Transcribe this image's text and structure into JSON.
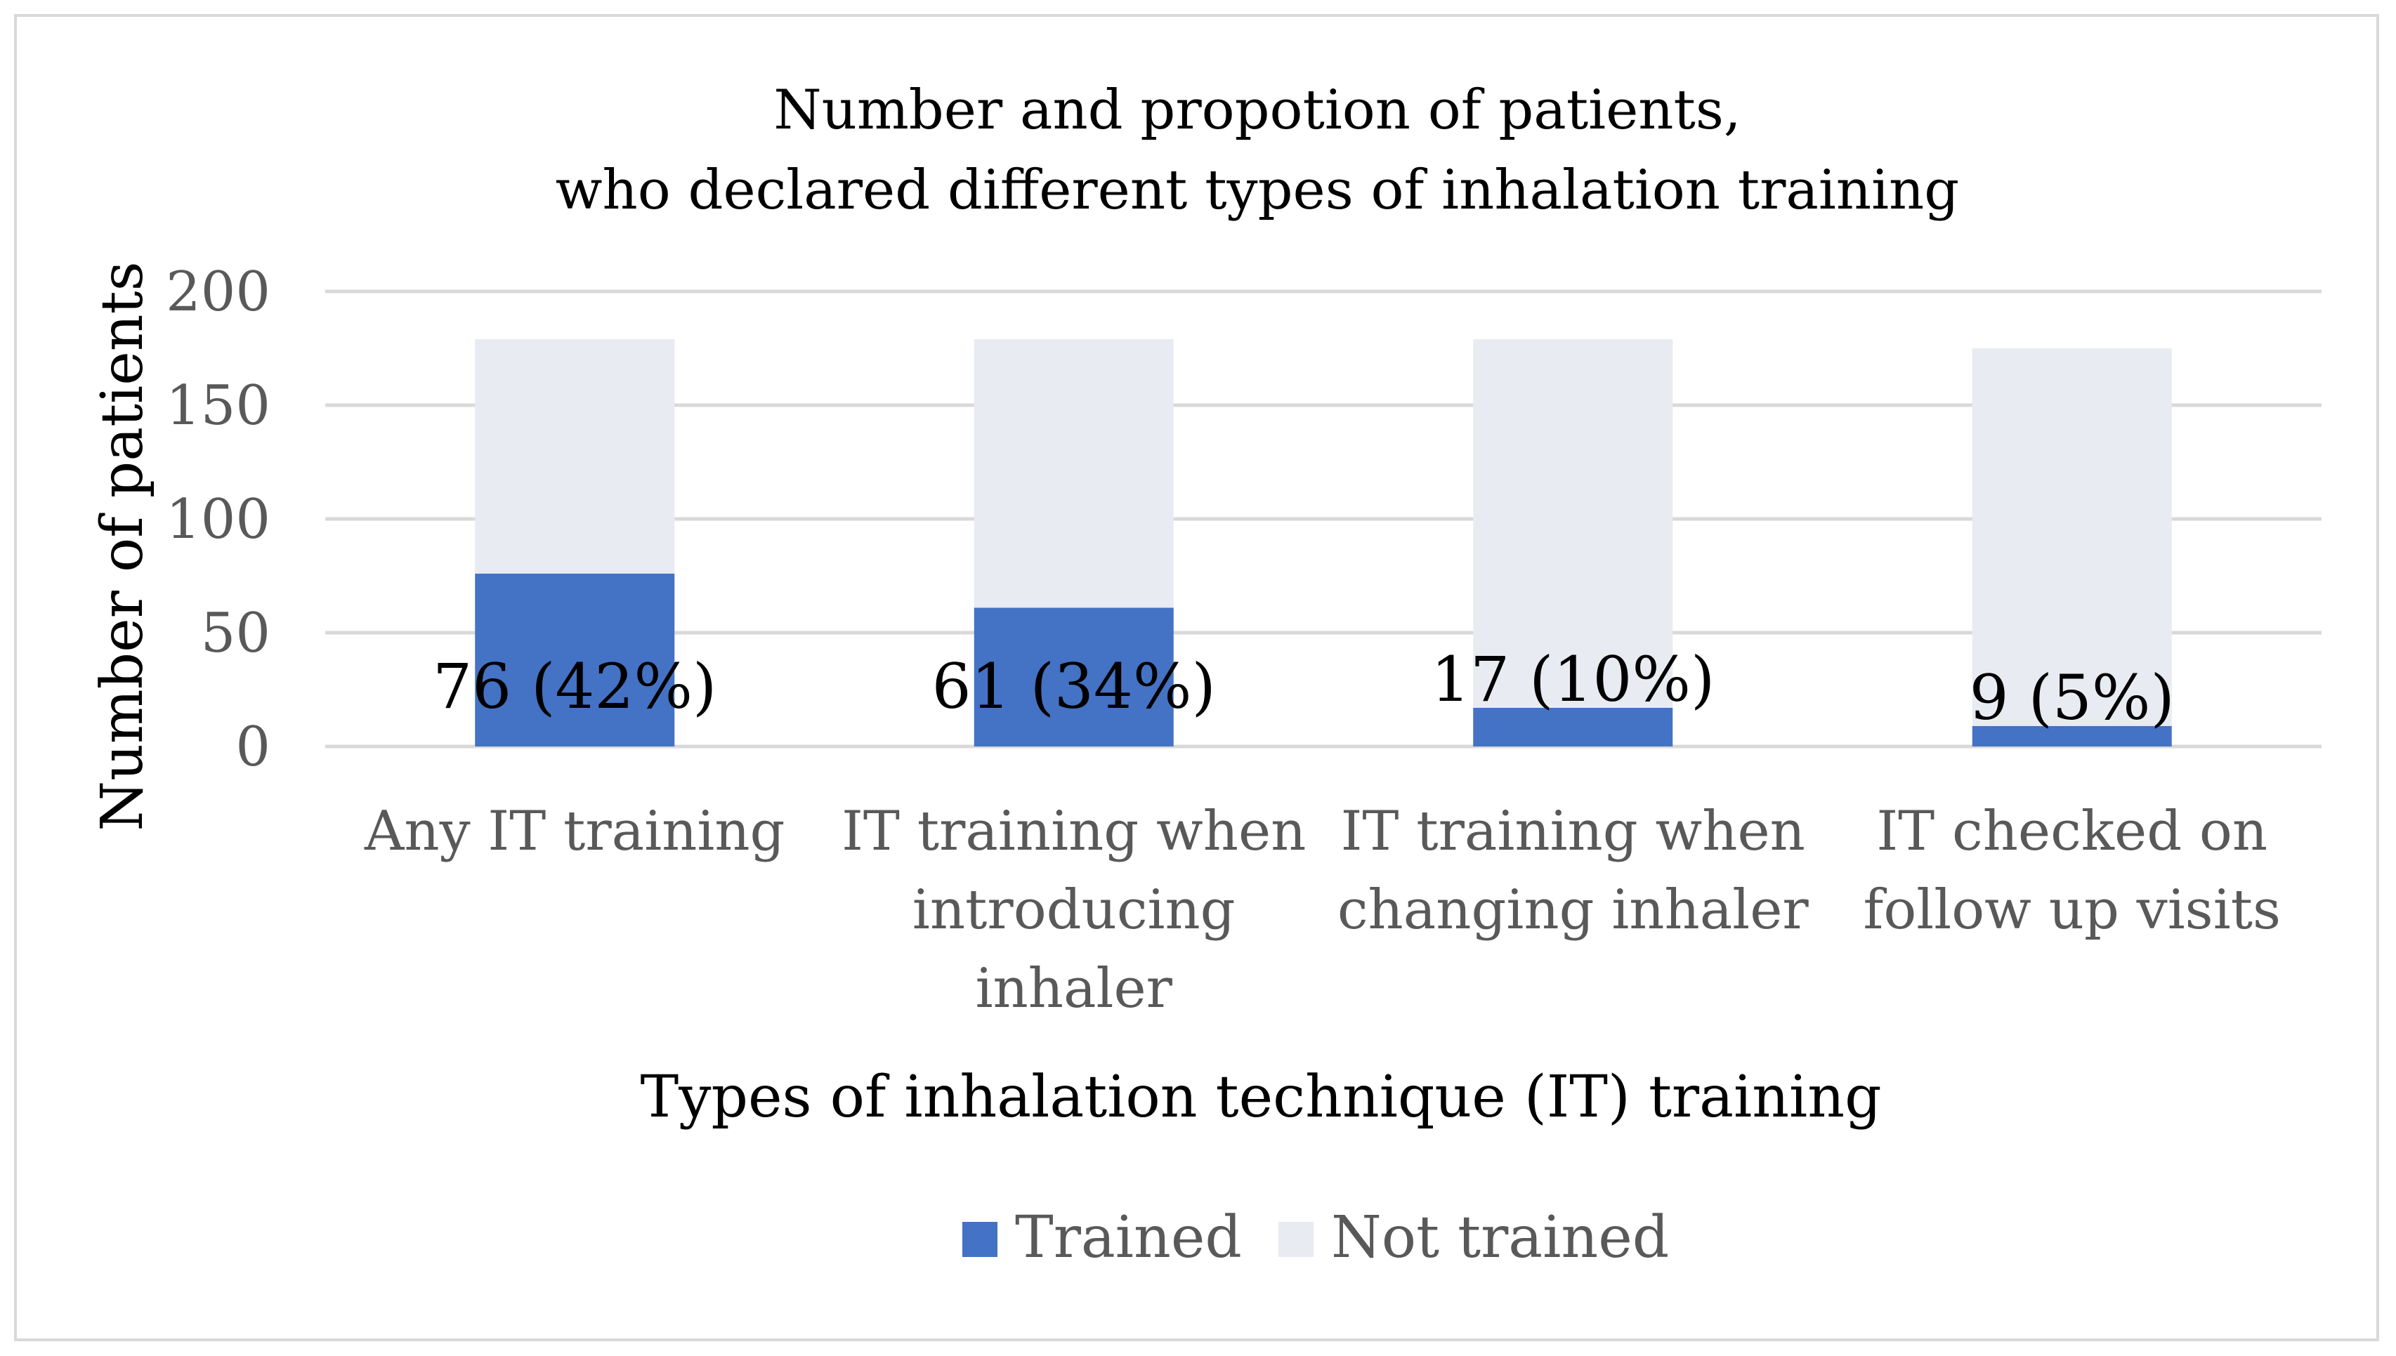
{
  "chart_data": {
    "type": "bar",
    "stacked": true,
    "title": [
      "Number and propotion of patients,",
      "who declared different types of inhalation training"
    ],
    "xlabel": "Types of inhalation technique (IT) training",
    "ylabel": "Number of patients",
    "ylim": [
      0,
      200
    ],
    "yticks": [
      0,
      50,
      100,
      150,
      200
    ],
    "grid": true,
    "legend_position": "bottom",
    "categories": [
      [
        "Any IT training"
      ],
      [
        "IT training when",
        "introducing",
        "inhaler"
      ],
      [
        "IT  training when",
        "changing inhaler"
      ],
      [
        "IT checked on",
        "follow up visits"
      ]
    ],
    "series": [
      {
        "name": "Trained",
        "color": "#4472c4",
        "values": [
          76,
          61,
          17,
          9
        ]
      },
      {
        "name": "Not trained",
        "color": "#e8ebf1",
        "values": [
          103,
          118,
          162,
          166
        ]
      }
    ],
    "data_labels": [
      "76 (42%)",
      "61 (34%)",
      "17 (10%)",
      "9 (5%)"
    ]
  }
}
